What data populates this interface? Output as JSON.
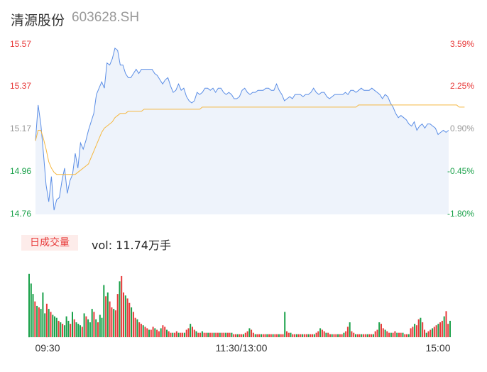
{
  "header": {
    "name": "清源股份",
    "code": "603628.SH"
  },
  "colors": {
    "up": "#e83a3a",
    "down": "#1aa14a",
    "neutral": "#999999",
    "price_line": "#5b8ee6",
    "avg_line": "#f5b841",
    "area_fill": "#eef3fb"
  },
  "volume_badge": "日成交量",
  "volume_text": "vol: 11.74万手",
  "chart_data": [
    {
      "type": "line",
      "title": "",
      "y_ticks_left": [
        "15.57",
        "15.37",
        "15.17",
        "14.96",
        "14.76"
      ],
      "y_ticks_right": [
        "3.59%",
        "2.25%",
        "0.90%",
        "-0.45%",
        "-1.80%"
      ],
      "ylim": [
        14.76,
        15.57
      ],
      "x_ticks": [
        "09:30",
        "11:30/13:00",
        "15:00"
      ],
      "series": [
        {
          "values": [
            15.11,
            15.28,
            15.19,
            15.05,
            14.9,
            14.82,
            14.94,
            14.78,
            14.83,
            14.84,
            14.92,
            14.98,
            14.86,
            14.92,
            14.95,
            15.05,
            14.98,
            15.1,
            15.07,
            15.11,
            15.16,
            15.2,
            15.24,
            15.33,
            15.36,
            15.39,
            15.36,
            15.48,
            15.47,
            15.5,
            15.55,
            15.54,
            15.47,
            15.47,
            15.43,
            15.41,
            15.41,
            15.43,
            15.45,
            15.43,
            15.45,
            15.45,
            15.45,
            15.45,
            15.45,
            15.43,
            15.42,
            15.4,
            15.38,
            15.4,
            15.41,
            15.37,
            15.34,
            15.35,
            15.38,
            15.35,
            15.36,
            15.32,
            15.3,
            15.29,
            15.3,
            15.34,
            15.33,
            15.34,
            15.36,
            15.36,
            15.35,
            15.36,
            15.34,
            15.36,
            15.36,
            15.34,
            15.33,
            15.34,
            15.33,
            15.31,
            15.31,
            15.32,
            15.35,
            15.36,
            15.34,
            15.33,
            15.34,
            15.34,
            15.35,
            15.35,
            15.35,
            15.36,
            15.36,
            15.35,
            15.35,
            15.38,
            15.35,
            15.33,
            15.3,
            15.31,
            15.32,
            15.31,
            15.33,
            15.33,
            15.33,
            15.32,
            15.33,
            15.33,
            15.34,
            15.36,
            15.34,
            15.33,
            15.34,
            15.34,
            15.32,
            15.31,
            15.32,
            15.33,
            15.33,
            15.33,
            15.33,
            15.34,
            15.33,
            15.35,
            15.35,
            15.34,
            15.35,
            15.36,
            15.35,
            15.35,
            15.35,
            15.36,
            15.35,
            15.34,
            15.33,
            15.31,
            15.33,
            15.32,
            15.29,
            15.27,
            15.24,
            15.22,
            15.23,
            15.22,
            15.21,
            15.19,
            15.18,
            15.2,
            15.16,
            15.18,
            15.19,
            15.17,
            15.19,
            15.19,
            15.18,
            15.17,
            15.14,
            15.15,
            15.16,
            15.15,
            15.16
          ]
        },
        {
          "values": [
            15.11,
            15.16,
            15.16,
            15.12,
            15.07,
            15.01,
            14.98,
            14.96,
            14.95,
            14.95,
            14.95,
            14.95,
            14.95,
            14.95,
            14.95,
            14.95,
            14.96,
            14.97,
            14.98,
            14.99,
            15.0,
            15.03,
            15.06,
            15.09,
            15.12,
            15.15,
            15.17,
            15.18,
            15.19,
            15.2,
            15.22,
            15.23,
            15.24,
            15.24,
            15.24,
            15.25,
            15.25,
            15.25,
            15.25,
            15.25,
            15.25,
            15.26,
            15.26,
            15.26,
            15.26,
            15.26,
            15.26,
            15.26,
            15.26,
            15.26,
            15.26,
            15.26,
            15.26,
            15.26,
            15.26,
            15.26,
            15.26,
            15.26,
            15.26,
            15.26,
            15.26,
            15.26,
            15.26,
            15.27,
            15.27,
            15.27,
            15.27,
            15.27,
            15.27,
            15.27,
            15.27,
            15.27,
            15.27,
            15.27,
            15.27,
            15.27,
            15.27,
            15.27,
            15.27,
            15.27,
            15.27,
            15.27,
            15.27,
            15.27,
            15.27,
            15.27,
            15.27,
            15.27,
            15.27,
            15.27,
            15.27,
            15.27,
            15.27,
            15.27,
            15.27,
            15.27,
            15.27,
            15.27,
            15.27,
            15.27,
            15.27,
            15.27,
            15.27,
            15.27,
            15.27,
            15.27,
            15.27,
            15.27,
            15.27,
            15.27,
            15.27,
            15.27,
            15.27,
            15.27,
            15.27,
            15.27,
            15.27,
            15.27,
            15.27,
            15.27,
            15.27,
            15.27,
            15.28,
            15.28,
            15.28,
            15.28,
            15.28,
            15.28,
            15.28,
            15.28,
            15.28,
            15.28,
            15.28,
            15.28,
            15.28,
            15.28,
            15.28,
            15.28,
            15.28,
            15.28,
            15.28,
            15.28,
            15.28,
            15.28,
            15.28,
            15.28,
            15.28,
            15.28,
            15.28,
            15.28,
            15.28,
            15.28,
            15.28,
            15.28,
            15.28,
            15.28,
            15.28,
            15.28,
            15.28,
            15.28,
            15.27,
            15.27,
            15.27
          ]
        }
      ]
    },
    {
      "type": "bar",
      "title": "",
      "values": [
        85,
        72,
        58,
        48,
        42,
        40,
        38,
        60,
        32,
        45,
        38,
        34,
        30,
        28,
        26,
        22,
        20,
        18,
        16,
        28,
        22,
        18,
        34,
        24,
        20,
        18,
        16,
        14,
        32,
        28,
        24,
        20,
        38,
        34,
        24,
        20,
        30,
        26,
        70,
        55,
        60,
        48,
        40,
        38,
        36,
        58,
        75,
        82,
        60,
        56,
        52,
        46,
        40,
        34,
        26,
        24,
        20,
        18,
        16,
        14,
        12,
        10,
        10,
        14,
        12,
        10,
        8,
        12,
        16,
        14,
        10,
        8,
        6,
        6,
        6,
        8,
        6,
        6,
        6,
        6,
        10,
        12,
        18,
        14,
        10,
        8,
        6,
        6,
        8,
        6,
        6,
        6,
        6,
        6,
        6,
        6,
        6,
        6,
        6,
        6,
        6,
        6,
        6,
        6,
        4,
        4,
        4,
        4,
        4,
        4,
        6,
        8,
        12,
        10,
        6,
        4,
        4,
        4,
        4,
        4,
        4,
        4,
        4,
        4,
        4,
        4,
        4,
        4,
        4,
        4,
        34,
        8,
        6,
        6,
        4,
        4,
        4,
        4,
        4,
        4,
        4,
        4,
        4,
        4,
        4,
        4,
        6,
        8,
        12,
        10,
        8,
        6,
        6,
        4,
        4,
        4,
        4,
        4,
        4,
        4,
        6,
        8,
        14,
        20,
        8,
        6,
        4,
        4,
        4,
        4,
        4,
        4,
        4,
        4,
        4,
        4,
        8,
        10,
        20,
        18,
        12,
        10,
        8,
        6,
        6,
        6,
        8,
        6,
        6,
        6,
        6,
        4,
        4,
        4,
        12,
        14,
        18,
        16,
        24,
        26,
        20,
        10,
        6,
        8,
        10,
        12,
        14,
        16,
        18,
        20,
        22,
        28,
        35,
        18,
        22
      ],
      "ylim": [
        0,
        100
      ]
    }
  ]
}
